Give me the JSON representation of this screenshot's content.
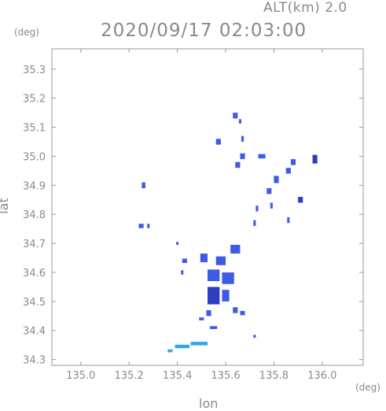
{
  "header": {
    "altitude_label": "ALT(km) 2.0",
    "timestamp": "2020/09/17 02:03:00"
  },
  "axes": {
    "x_unit": "(deg)",
    "y_unit": "(deg)",
    "xlabel": "lon",
    "ylabel": "lat"
  },
  "chart_data": {
    "type": "heatmap",
    "xlabel": "lon",
    "ylabel": "lat",
    "x_ticks": [
      135.0,
      135.2,
      135.4,
      135.6,
      135.8,
      136.0
    ],
    "x_tick_labels": [
      "135.0",
      "135.2",
      "135.4",
      "135.6",
      "135.8",
      "136.0"
    ],
    "y_ticks": [
      34.3,
      34.4,
      34.5,
      34.6,
      34.7,
      34.8,
      34.9,
      35.0,
      35.1,
      35.2,
      35.3
    ],
    "y_tick_labels": [
      "34.3",
      "34.4",
      "34.5",
      "34.6",
      "34.7",
      "34.8",
      "34.9",
      "35.0",
      "35.1",
      "35.2",
      "35.3"
    ],
    "xlim": [
      134.88,
      136.17
    ],
    "ylim": [
      34.28,
      35.37
    ],
    "grid": false,
    "colors": {
      "frame": "#9a9a9a",
      "echo_blue": "#3d5ce6",
      "echo_light": "#2ea6ee",
      "echo_dark": "#2b3fc0"
    },
    "echoes": [
      {
        "lon": 135.64,
        "lat": 35.14,
        "w": 0.02,
        "h": 0.02,
        "level": "blue"
      },
      {
        "lon": 135.66,
        "lat": 35.12,
        "w": 0.01,
        "h": 0.015,
        "level": "blue"
      },
      {
        "lon": 135.67,
        "lat": 35.06,
        "w": 0.01,
        "h": 0.02,
        "level": "blue"
      },
      {
        "lon": 135.57,
        "lat": 35.05,
        "w": 0.02,
        "h": 0.02,
        "level": "blue"
      },
      {
        "lon": 135.67,
        "lat": 35.0,
        "w": 0.02,
        "h": 0.02,
        "level": "blue"
      },
      {
        "lon": 135.65,
        "lat": 34.97,
        "w": 0.02,
        "h": 0.02,
        "level": "blue"
      },
      {
        "lon": 135.75,
        "lat": 35.0,
        "w": 0.03,
        "h": 0.015,
        "level": "blue"
      },
      {
        "lon": 135.97,
        "lat": 34.99,
        "w": 0.02,
        "h": 0.03,
        "level": "dark"
      },
      {
        "lon": 135.88,
        "lat": 34.98,
        "w": 0.02,
        "h": 0.02,
        "level": "blue"
      },
      {
        "lon": 135.86,
        "lat": 34.95,
        "w": 0.02,
        "h": 0.02,
        "level": "blue"
      },
      {
        "lon": 135.81,
        "lat": 34.92,
        "w": 0.02,
        "h": 0.025,
        "level": "blue"
      },
      {
        "lon": 135.78,
        "lat": 34.88,
        "w": 0.02,
        "h": 0.02,
        "level": "blue"
      },
      {
        "lon": 135.91,
        "lat": 34.85,
        "w": 0.02,
        "h": 0.02,
        "level": "dark"
      },
      {
        "lon": 135.79,
        "lat": 34.83,
        "w": 0.01,
        "h": 0.02,
        "level": "blue"
      },
      {
        "lon": 135.73,
        "lat": 34.82,
        "w": 0.01,
        "h": 0.02,
        "level": "blue"
      },
      {
        "lon": 135.86,
        "lat": 34.78,
        "w": 0.01,
        "h": 0.02,
        "level": "blue"
      },
      {
        "lon": 135.72,
        "lat": 34.77,
        "w": 0.01,
        "h": 0.02,
        "level": "blue"
      },
      {
        "lon": 135.26,
        "lat": 34.9,
        "w": 0.015,
        "h": 0.02,
        "level": "blue"
      },
      {
        "lon": 135.25,
        "lat": 34.76,
        "w": 0.02,
        "h": 0.015,
        "level": "blue"
      },
      {
        "lon": 135.28,
        "lat": 34.76,
        "w": 0.01,
        "h": 0.015,
        "level": "blue"
      },
      {
        "lon": 135.4,
        "lat": 34.7,
        "w": 0.01,
        "h": 0.01,
        "level": "blue"
      },
      {
        "lon": 135.64,
        "lat": 34.68,
        "w": 0.04,
        "h": 0.03,
        "level": "blue"
      },
      {
        "lon": 135.51,
        "lat": 34.65,
        "w": 0.03,
        "h": 0.03,
        "level": "blue"
      },
      {
        "lon": 135.58,
        "lat": 34.64,
        "w": 0.04,
        "h": 0.03,
        "level": "blue"
      },
      {
        "lon": 135.43,
        "lat": 34.64,
        "w": 0.02,
        "h": 0.015,
        "level": "blue"
      },
      {
        "lon": 135.55,
        "lat": 34.59,
        "w": 0.05,
        "h": 0.04,
        "level": "blue"
      },
      {
        "lon": 135.61,
        "lat": 34.58,
        "w": 0.05,
        "h": 0.04,
        "level": "blue"
      },
      {
        "lon": 135.42,
        "lat": 34.6,
        "w": 0.01,
        "h": 0.015,
        "level": "blue"
      },
      {
        "lon": 135.55,
        "lat": 34.52,
        "w": 0.05,
        "h": 0.06,
        "level": "dark"
      },
      {
        "lon": 135.6,
        "lat": 34.52,
        "w": 0.03,
        "h": 0.04,
        "level": "blue"
      },
      {
        "lon": 135.64,
        "lat": 34.47,
        "w": 0.02,
        "h": 0.02,
        "level": "blue"
      },
      {
        "lon": 135.53,
        "lat": 34.46,
        "w": 0.02,
        "h": 0.02,
        "level": "blue"
      },
      {
        "lon": 135.5,
        "lat": 34.44,
        "w": 0.02,
        "h": 0.01,
        "level": "blue"
      },
      {
        "lon": 135.55,
        "lat": 34.41,
        "w": 0.03,
        "h": 0.01,
        "level": "blue"
      },
      {
        "lon": 135.67,
        "lat": 34.46,
        "w": 0.02,
        "h": 0.015,
        "level": "blue"
      },
      {
        "lon": 135.72,
        "lat": 34.38,
        "w": 0.01,
        "h": 0.01,
        "level": "blue"
      },
      {
        "lon": 135.37,
        "lat": 34.33,
        "w": 0.02,
        "h": 0.01,
        "level": "light"
      },
      {
        "lon": 135.42,
        "lat": 34.345,
        "w": 0.06,
        "h": 0.012,
        "level": "light"
      },
      {
        "lon": 135.49,
        "lat": 34.355,
        "w": 0.07,
        "h": 0.012,
        "level": "light"
      }
    ]
  }
}
